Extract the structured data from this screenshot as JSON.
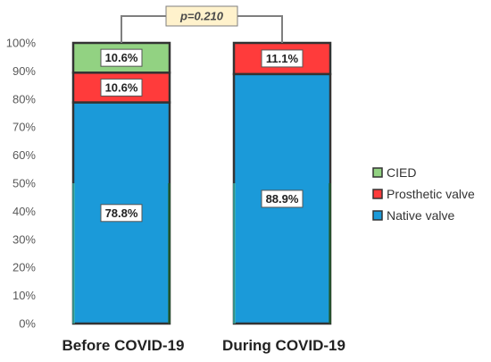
{
  "chart_data": {
    "type": "bar",
    "stacked": true,
    "categories": [
      "Before COVID-19",
      "During COVID-19"
    ],
    "series": [
      {
        "name": "Native valve",
        "values": [
          78.8,
          88.9
        ],
        "labels": [
          "78.8%",
          "88.9%"
        ],
        "color": "#1b9ad9"
      },
      {
        "name": "Prosthetic valve",
        "values": [
          10.6,
          11.1
        ],
        "labels": [
          "10.6%",
          "11.1%"
        ],
        "color": "#ff3b3b"
      },
      {
        "name": "CIED",
        "values": [
          10.6,
          0
        ],
        "labels": [
          "10.6%",
          ""
        ],
        "color": "#92d282"
      }
    ],
    "yticks": [
      "0%",
      "10%",
      "20%",
      "30%",
      "40%",
      "50%",
      "60%",
      "70%",
      "80%",
      "90%",
      "100%"
    ],
    "ylim": [
      0,
      100
    ],
    "legend_order": [
      "CIED",
      "Prosthetic valve",
      "Native valve"
    ],
    "legend_position": "right",
    "annotation": "p=0.210",
    "grid": false
  }
}
